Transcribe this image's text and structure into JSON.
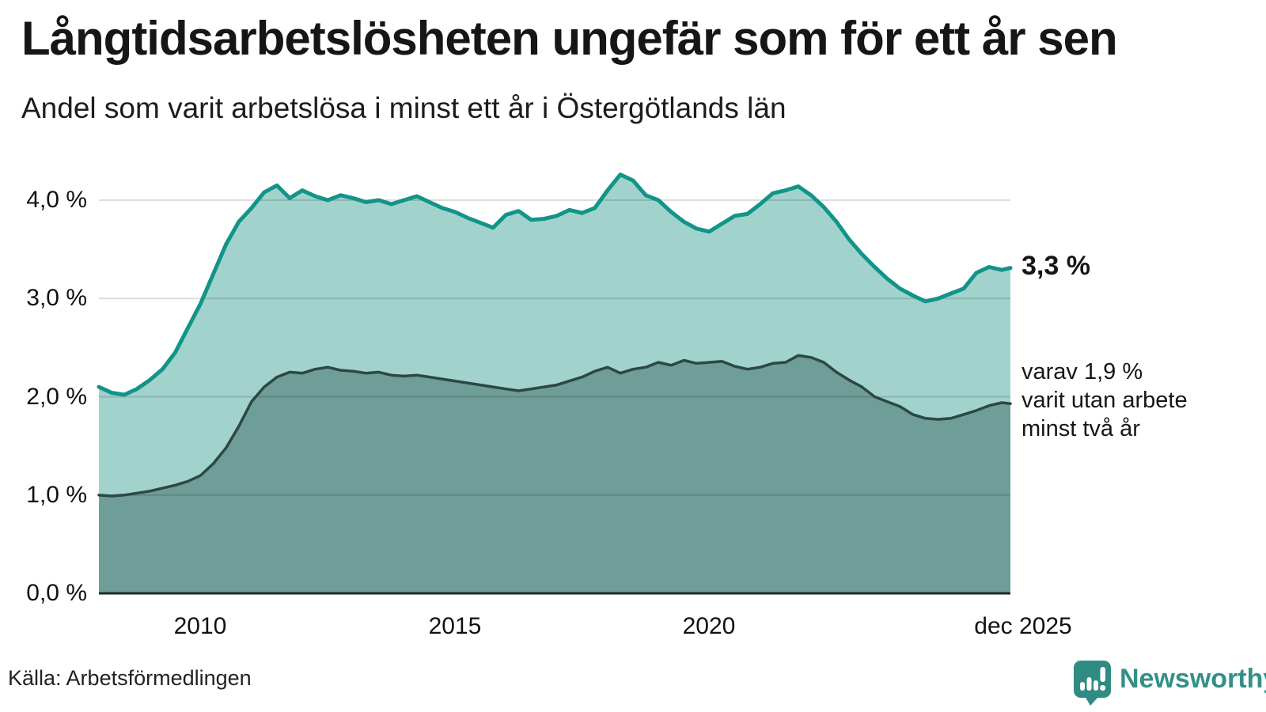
{
  "header": {
    "title": "Långtidsarbetslösheten ungefär som för ett år sen",
    "subtitle": "Andel som varit arbetslösa i minst ett år i Östergötlands län"
  },
  "chart_data": {
    "type": "area",
    "title": "Långtidsarbetslösheten ungefär som för ett år sen",
    "subtitle": "Andel som varit arbetslösa i minst ett år i Östergötlands län",
    "unit": "%",
    "grid": true,
    "ylim": [
      0,
      4.35
    ],
    "y_ticks": [
      "4,0 %",
      "3,0 %",
      "2,0 %",
      "1,0 %",
      "0,0 %"
    ],
    "y_tick_values": [
      4,
      3,
      2,
      1,
      0
    ],
    "x_ticks": [
      "2010",
      "2015",
      "2020",
      "dec 2025"
    ],
    "x_tick_years": [
      2010,
      2015,
      2020,
      2025.92
    ],
    "x": [
      2008.0,
      2008.25,
      2008.5,
      2008.75,
      2009.0,
      2009.25,
      2009.5,
      2009.75,
      2010.0,
      2010.25,
      2010.5,
      2010.75,
      2011.0,
      2011.25,
      2011.5,
      2011.75,
      2012.0,
      2012.25,
      2012.5,
      2012.75,
      2013.0,
      2013.25,
      2013.5,
      2013.75,
      2014.0,
      2014.25,
      2014.5,
      2014.75,
      2015.0,
      2015.25,
      2015.5,
      2015.75,
      2016.0,
      2016.25,
      2016.5,
      2016.75,
      2017.0,
      2017.25,
      2017.5,
      2017.75,
      2018.0,
      2018.25,
      2018.5,
      2018.75,
      2019.0,
      2019.25,
      2019.5,
      2019.75,
      2020.0,
      2020.25,
      2020.5,
      2020.75,
      2021.0,
      2021.25,
      2021.5,
      2021.75,
      2022.0,
      2022.25,
      2022.5,
      2022.75,
      2023.0,
      2023.25,
      2023.5,
      2023.75,
      2024.0,
      2024.25,
      2024.5,
      2024.75,
      2025.0,
      2025.25,
      2025.5,
      2025.75,
      2025.92
    ],
    "series": [
      {
        "name": "Arbetslösa minst ett år",
        "line_color": "#129488",
        "fill_color": "#a1d3cc",
        "line_width": 5,
        "end_label": "3,3 %",
        "values": [
          2.1,
          2.04,
          2.02,
          2.08,
          2.17,
          2.28,
          2.45,
          2.7,
          2.95,
          3.25,
          3.55,
          3.78,
          3.92,
          4.08,
          4.15,
          4.02,
          4.1,
          4.04,
          4.0,
          4.05,
          4.02,
          3.98,
          4.0,
          3.96,
          4.0,
          4.04,
          3.98,
          3.92,
          3.88,
          3.82,
          3.77,
          3.72,
          3.85,
          3.89,
          3.8,
          3.81,
          3.84,
          3.9,
          3.87,
          3.92,
          4.1,
          4.26,
          4.2,
          4.05,
          4.0,
          3.88,
          3.78,
          3.71,
          3.68,
          3.76,
          3.84,
          3.86,
          3.96,
          4.07,
          4.1,
          4.14,
          4.05,
          3.93,
          3.78,
          3.6,
          3.45,
          3.32,
          3.2,
          3.1,
          3.03,
          2.97,
          3.0,
          3.05,
          3.1,
          3.26,
          3.32,
          3.29,
          3.31
        ]
      },
      {
        "name": "Varav utan arbete minst två år",
        "line_color": "#2d4844",
        "fill_color": "#6f9d97",
        "line_width": 3.5,
        "end_label": "varav 1,9 %",
        "values": [
          1.0,
          0.99,
          1.0,
          1.02,
          1.04,
          1.07,
          1.1,
          1.14,
          1.2,
          1.32,
          1.48,
          1.7,
          1.95,
          2.1,
          2.2,
          2.25,
          2.24,
          2.28,
          2.3,
          2.27,
          2.26,
          2.24,
          2.25,
          2.22,
          2.21,
          2.22,
          2.2,
          2.18,
          2.16,
          2.14,
          2.12,
          2.1,
          2.08,
          2.06,
          2.08,
          2.1,
          2.12,
          2.16,
          2.2,
          2.26,
          2.3,
          2.24,
          2.28,
          2.3,
          2.35,
          2.32,
          2.37,
          2.34,
          2.35,
          2.36,
          2.31,
          2.28,
          2.3,
          2.34,
          2.35,
          2.42,
          2.4,
          2.35,
          2.25,
          2.17,
          2.1,
          2.0,
          1.95,
          1.9,
          1.82,
          1.78,
          1.77,
          1.78,
          1.82,
          1.86,
          1.91,
          1.94,
          1.93
        ]
      }
    ],
    "colors": {
      "grid": "#dddddd",
      "baseline": "#1f2b28"
    }
  },
  "annotations": {
    "end_value": "3,3 %",
    "end_note": "varav 1,9 %\nvarit utan arbete\nminst två år"
  },
  "footer": {
    "source": "Källa: Arbetsförmedlingen"
  },
  "branding": {
    "name": "Newsworthy",
    "color": "#2f8c82",
    "icon": "newsworthy-speech-bubble-bar-chart-icon"
  }
}
